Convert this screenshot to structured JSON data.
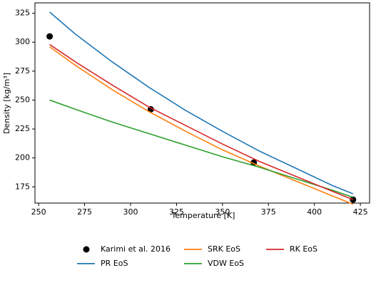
{
  "chart_data": {
    "type": "line",
    "xlabel": "Temperature [K]",
    "ylabel": "Density [kg/m³]",
    "xlim": [
      248,
      430
    ],
    "ylim": [
      161,
      334
    ],
    "xticks": [
      250,
      275,
      300,
      325,
      350,
      375,
      400,
      425
    ],
    "yticks": [
      175,
      200,
      225,
      250,
      275,
      300,
      325
    ],
    "series": [
      {
        "name": "Karimi et al. 2016",
        "style": "markers",
        "color": "#000000",
        "x": [
          256,
          311,
          367,
          421
        ],
        "values": [
          305,
          242,
          196,
          164
        ]
      },
      {
        "name": "PR EoS",
        "style": "line",
        "color": "#1f77b4",
        "x": [
          256,
          270,
          290,
          310,
          330,
          350,
          370,
          390,
          410,
          421
        ],
        "values": [
          326,
          307,
          283,
          261,
          241,
          223,
          206,
          191,
          176,
          169
        ]
      },
      {
        "name": "SRK EoS",
        "style": "line",
        "color": "#ff7f0e",
        "x": [
          256,
          270,
          290,
          310,
          330,
          350,
          370,
          390,
          410,
          421
        ],
        "values": [
          296,
          280,
          259,
          240,
          223,
          207,
          193,
          180,
          167,
          160
        ]
      },
      {
        "name": "VDW EoS",
        "style": "line",
        "color": "#2ca02c",
        "x": [
          256,
          270,
          290,
          310,
          330,
          350,
          370,
          390,
          410,
          421
        ],
        "values": [
          250,
          242,
          231,
          221,
          211,
          201,
          192,
          182,
          172,
          166
        ]
      },
      {
        "name": "RK EoS",
        "style": "line",
        "color": "#d62728",
        "x": [
          256,
          270,
          290,
          310,
          330,
          350,
          370,
          390,
          410,
          421
        ],
        "values": [
          298,
          283,
          263,
          244,
          228,
          212,
          197,
          184,
          171,
          164
        ]
      }
    ]
  }
}
